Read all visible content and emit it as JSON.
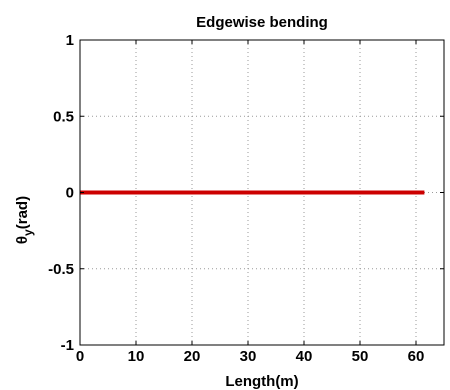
{
  "chart_data": {
    "type": "line",
    "title": "Edgewise bending",
    "xlabel": "Length(m)",
    "ylabel": {
      "base": "θ",
      "subscript": "y",
      "suffix": "(rad)"
    },
    "xlim": [
      0,
      65
    ],
    "ylim": [
      -1,
      1
    ],
    "x_ticks": [
      "0",
      "10",
      "20",
      "30",
      "40",
      "50",
      "60"
    ],
    "y_ticks": [
      "-1",
      "-0.5",
      "0",
      "0.5",
      "1"
    ],
    "grid": true,
    "series": [
      {
        "color": "#cc0000",
        "x": [
          0,
          61.5
        ],
        "y": [
          0,
          0
        ]
      }
    ]
  }
}
